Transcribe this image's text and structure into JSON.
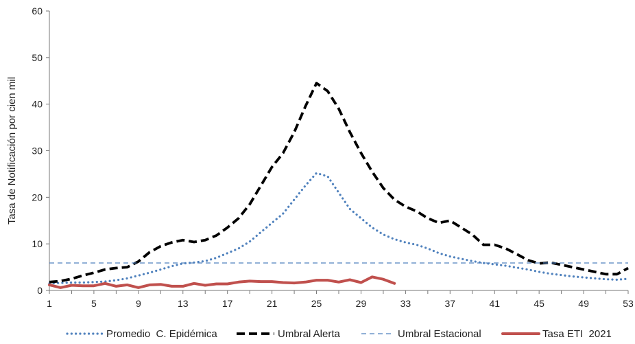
{
  "chart_data": {
    "type": "line",
    "title": "",
    "xlabel": "",
    "ylabel": "Tasa de Notificación por cien mil",
    "xlim": [
      1,
      53
    ],
    "ylim": [
      0,
      60
    ],
    "x_ticks": [
      1,
      5,
      9,
      13,
      17,
      21,
      25,
      29,
      33,
      37,
      41,
      45,
      49,
      53
    ],
    "y_ticks": [
      0,
      10,
      20,
      30,
      40,
      50,
      60
    ],
    "grid": false,
    "legend_position": "bottom",
    "series": [
      {
        "name": "Promedio  C. Epidémica",
        "color": "#4f81bd",
        "style": "dotted",
        "x": [
          1,
          2,
          3,
          4,
          5,
          6,
          7,
          8,
          9,
          10,
          11,
          12,
          13,
          14,
          15,
          16,
          17,
          18,
          19,
          20,
          21,
          22,
          23,
          24,
          25,
          26,
          27,
          28,
          29,
          30,
          31,
          32,
          33,
          34,
          35,
          36,
          37,
          38,
          39,
          40,
          41,
          42,
          43,
          44,
          45,
          46,
          47,
          48,
          49,
          50,
          51,
          52,
          53
        ],
        "y": [
          1.5,
          1.6,
          1.7,
          1.7,
          1.8,
          1.9,
          2.2,
          2.6,
          3.2,
          3.8,
          4.5,
          5.2,
          5.8,
          6.0,
          6.3,
          7.0,
          8.0,
          9.0,
          10.5,
          12.5,
          14.5,
          16.5,
          19.5,
          22.5,
          25.2,
          24.5,
          21.0,
          17.5,
          15.5,
          13.5,
          12.0,
          11.0,
          10.3,
          9.8,
          9.0,
          8.0,
          7.3,
          6.8,
          6.3,
          5.9,
          5.6,
          5.3,
          4.9,
          4.5,
          4.0,
          3.6,
          3.3,
          3.0,
          2.8,
          2.6,
          2.4,
          2.3,
          2.5
        ]
      },
      {
        "name": "Umbral Alerta",
        "color": "#000000",
        "style": "dashed",
        "x": [
          1,
          2,
          3,
          4,
          5,
          6,
          7,
          8,
          9,
          10,
          11,
          12,
          13,
          14,
          15,
          16,
          17,
          18,
          19,
          20,
          21,
          22,
          23,
          24,
          25,
          26,
          27,
          28,
          29,
          30,
          31,
          32,
          33,
          34,
          35,
          36,
          37,
          38,
          39,
          40,
          41,
          42,
          43,
          44,
          45,
          46,
          47,
          48,
          49,
          50,
          51,
          52,
          53
        ],
        "y": [
          1.8,
          2.0,
          2.5,
          3.2,
          3.8,
          4.5,
          4.8,
          5.0,
          6.2,
          8.2,
          9.5,
          10.3,
          10.8,
          10.4,
          10.8,
          11.8,
          13.5,
          15.5,
          18.5,
          22.5,
          26.5,
          29.5,
          34.0,
          39.5,
          44.5,
          42.8,
          39.0,
          34.0,
          29.5,
          25.5,
          22.0,
          19.5,
          18.0,
          17.0,
          15.5,
          14.5,
          15.0,
          13.5,
          12.0,
          9.8,
          9.8,
          9.0,
          7.8,
          6.5,
          5.8,
          6.0,
          5.5,
          5.0,
          4.5,
          4.0,
          3.5,
          3.5,
          4.8
        ]
      },
      {
        "name": "Umbral Estacional",
        "color": "#4f81bd",
        "style": "thin-dashed",
        "x": [
          1,
          53
        ],
        "y": [
          5.9,
          5.9
        ]
      },
      {
        "name": "Tasa ETI  2021",
        "color": "#c0504d",
        "style": "solid",
        "x": [
          1,
          2,
          3,
          4,
          5,
          6,
          7,
          8,
          9,
          10,
          11,
          12,
          13,
          14,
          15,
          16,
          17,
          18,
          19,
          20,
          21,
          22,
          23,
          24,
          25,
          26,
          27,
          28,
          29,
          30,
          31,
          32
        ],
        "y": [
          1.2,
          0.6,
          1.1,
          1.0,
          1.0,
          1.5,
          0.9,
          1.2,
          0.6,
          1.2,
          1.3,
          0.9,
          0.9,
          1.5,
          1.1,
          1.4,
          1.4,
          1.8,
          2.0,
          1.9,
          1.9,
          1.7,
          1.6,
          1.8,
          2.2,
          2.2,
          1.8,
          2.3,
          1.7,
          2.9,
          2.4,
          1.5
        ]
      }
    ]
  }
}
